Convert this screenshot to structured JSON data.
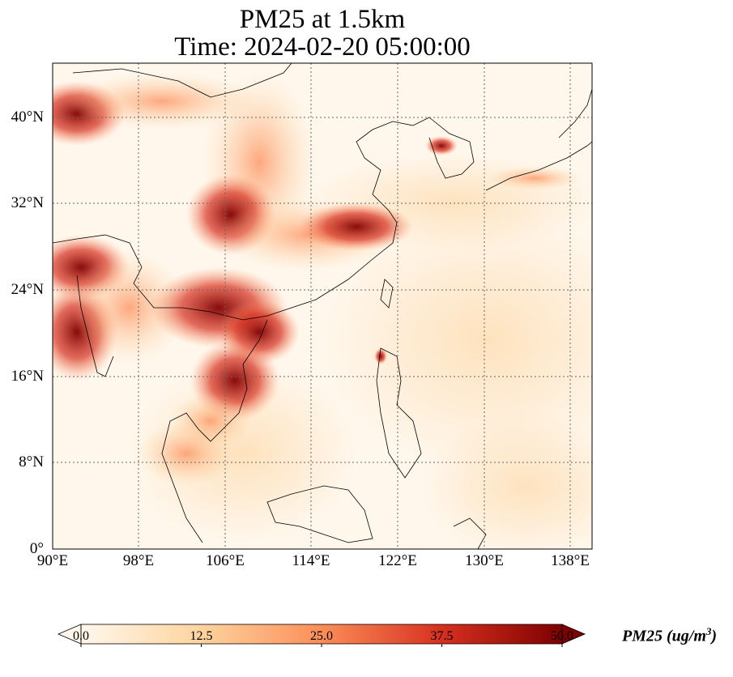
{
  "title": {
    "line1": "PM25 at 1.5km",
    "line2": "Time: 2024-02-20 05:00:00"
  },
  "map": {
    "projection": "PlateCarree",
    "lon_range": [
      90,
      140
    ],
    "lat_range": [
      0,
      45
    ],
    "x_ticks": [
      "90°E",
      "98°E",
      "106°E",
      "114°E",
      "122°E",
      "130°E",
      "138°E"
    ],
    "y_ticks": [
      "40°N",
      "32°N",
      "24°N",
      "16°N",
      "8°N",
      "0°"
    ],
    "gridlines": "dotted",
    "colormap": "OrRd",
    "variable": "PM25",
    "level": "1.5km"
  },
  "colorbar": {
    "ticks": [
      "0.0",
      "12.5",
      "25.0",
      "37.5",
      "50.0"
    ],
    "range": [
      0,
      50
    ],
    "extend": "both",
    "label_main": "PM25 (ug/m",
    "label_sup": "3",
    "label_close": ")"
  },
  "colors": {
    "low": "#fff7ec",
    "mid_low": "#fdd49e",
    "mid": "#fc8d59",
    "high": "#d7301f",
    "max": "#7f0000"
  }
}
